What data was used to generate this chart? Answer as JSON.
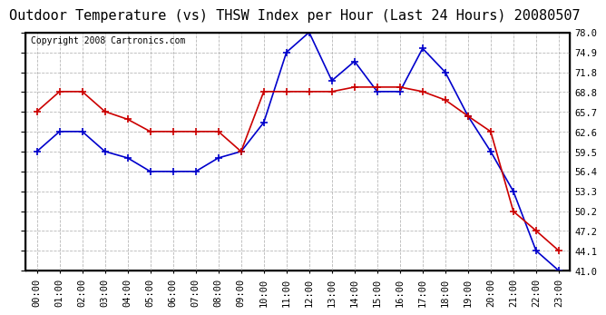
{
  "title": "Outdoor Temperature (vs) THSW Index per Hour (Last 24 Hours) 20080507",
  "copyright": "Copyright 2008 Cartronics.com",
  "x_labels": [
    "00:00",
    "01:00",
    "02:00",
    "03:00",
    "04:00",
    "05:00",
    "06:00",
    "07:00",
    "08:00",
    "09:00",
    "10:00",
    "11:00",
    "12:00",
    "13:00",
    "14:00",
    "15:00",
    "16:00",
    "17:00",
    "18:00",
    "19:00",
    "20:00",
    "21:00",
    "22:00",
    "23:00"
  ],
  "temp_data": [
    65.7,
    68.8,
    68.8,
    65.7,
    64.5,
    62.6,
    62.6,
    62.6,
    62.6,
    59.5,
    68.8,
    68.8,
    68.8,
    68.8,
    69.5,
    69.5,
    69.5,
    68.8,
    67.5,
    65.0,
    62.6,
    50.2,
    47.2,
    44.1
  ],
  "thsw_data": [
    59.5,
    62.6,
    62.6,
    59.5,
    58.5,
    56.4,
    56.4,
    56.4,
    58.5,
    59.5,
    64.0,
    74.9,
    78.0,
    70.5,
    73.5,
    68.8,
    68.8,
    75.5,
    71.8,
    65.0,
    59.5,
    53.3,
    44.1,
    41.0
  ],
  "temp_color": "#cc0000",
  "thsw_color": "#0000cc",
  "ylim_min": 41.0,
  "ylim_max": 78.0,
  "yticks": [
    41.0,
    44.1,
    47.2,
    50.2,
    53.3,
    56.4,
    59.5,
    62.6,
    65.7,
    68.8,
    71.8,
    74.9,
    78.0
  ],
  "bg_color": "#ffffff",
  "grid_color": "#b0b0b0",
  "title_fontsize": 11,
  "copyright_fontsize": 7,
  "tick_fontsize": 7.5,
  "marker_size": 3,
  "linewidth": 1.2
}
